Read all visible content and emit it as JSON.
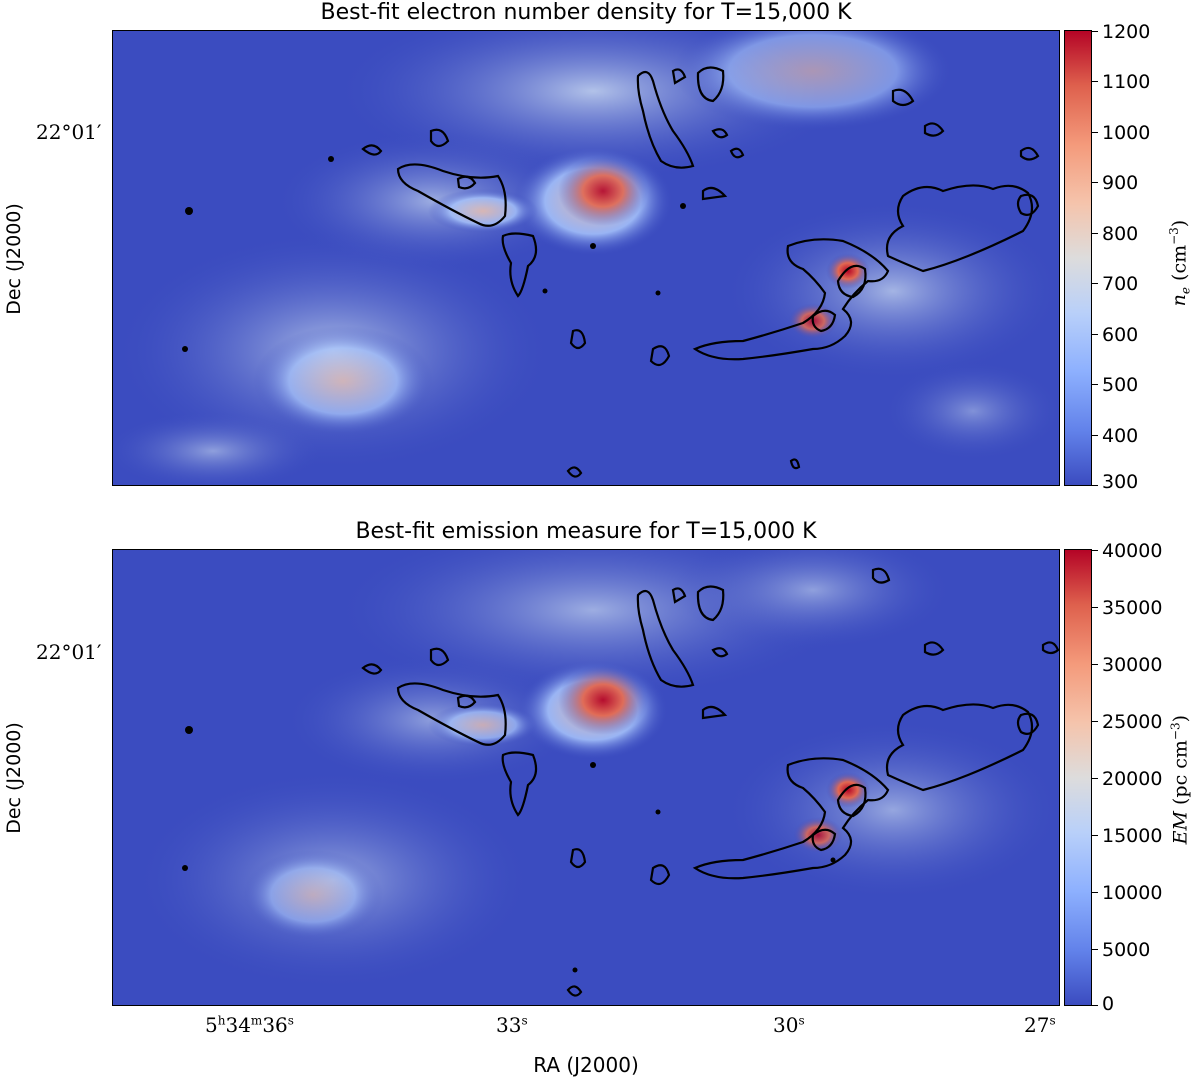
{
  "chart_data": [
    {
      "type": "heatmap",
      "title": "Best-fit electron number density for T=15,000 K",
      "colorbar": {
        "label": "n_e (cm^-3)",
        "min": 300,
        "max": 1200,
        "ticks": [
          "1200",
          "1100",
          "1000",
          "900",
          "800",
          "700",
          "600",
          "500",
          "400",
          "300"
        ],
        "colormap": "coolwarm"
      },
      "ylabel": "Dec (J2000)",
      "yticks": [
        "22°01′"
      ],
      "contours": "black",
      "grid": false
    },
    {
      "type": "heatmap",
      "title": "Best-fit emission measure for T=15,000 K",
      "colorbar": {
        "label": "EM (pc cm^-3)",
        "min": 0,
        "max": 40000,
        "ticks": [
          "40000",
          "35000",
          "30000",
          "25000",
          "20000",
          "15000",
          "10000",
          "5000",
          "0"
        ],
        "colormap": "coolwarm"
      },
      "ylabel": "Dec (J2000)",
      "yticks": [
        "22°01′"
      ],
      "xlabel": "RA (J2000)",
      "xticks": [
        "5h34m36s",
        "33s",
        "30s",
        "27s"
      ],
      "contours": "black",
      "grid": false
    }
  ],
  "labels": {
    "top_title": "Best-fit electron number density for T=15,000 K",
    "bottom_title": "Best-fit emission measure for T=15,000 K",
    "ylabel": "Dec (J2000)",
    "xlabel": "RA (J2000)",
    "ytick": "22°01′",
    "xtick_33": "33",
    "xtick_30": "30",
    "xtick_27": "27",
    "xtick_36_h": "5",
    "xtick_36_m": "34",
    "xtick_36_s": "36",
    "cbar_top_var": "n",
    "cbar_top_sub": "e",
    "cbar_top_unit": "(cm",
    "cbar_top_exp": "−3",
    "cbar_bottom_var": "EM",
    "cbar_bottom_unit": "(pc cm",
    "cbar_bottom_exp": "−3",
    "sup_h": "h",
    "sup_m": "m",
    "sup_s": "s"
  },
  "colors": {
    "background_blue": "#3b4cc0",
    "contour": "#000000"
  }
}
